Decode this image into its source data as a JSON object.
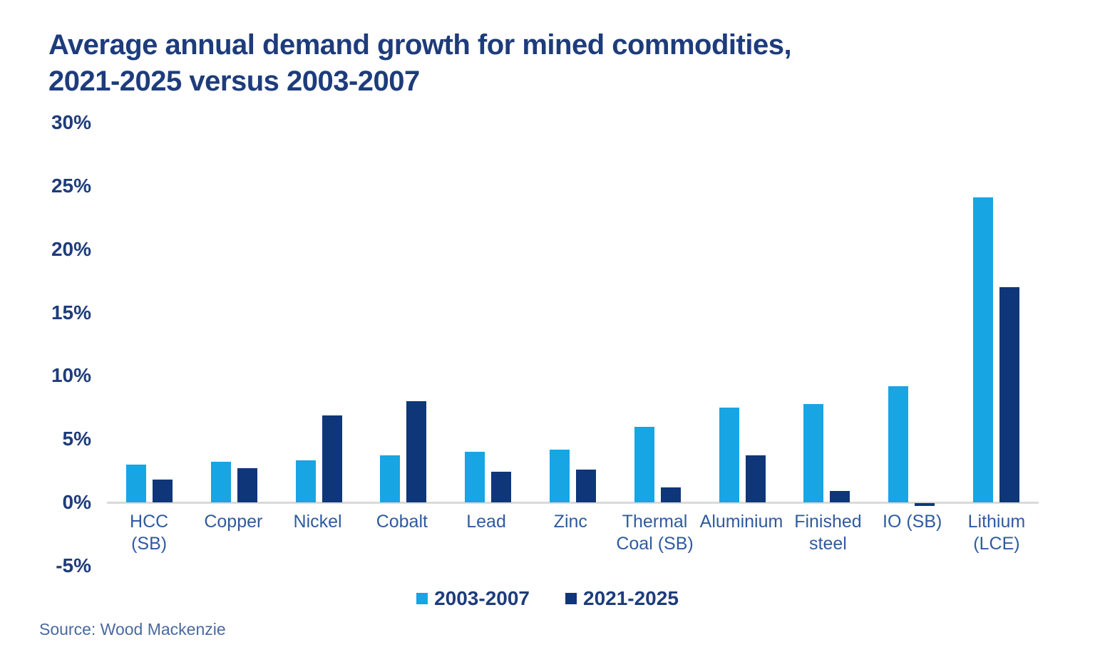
{
  "title": {
    "line1": "Average annual demand growth for mined commodities,",
    "line2": "2021-2025 versus 2003-2007"
  },
  "source": "Source: Wood Mackenzie",
  "colors": {
    "series_2003_2007": "#18a5e3",
    "series_2021_2025": "#0f3678",
    "navy_text": "#1e3c7b",
    "category_text": "#2f5b9f",
    "source_text": "#49699e",
    "baseline": "#d9d9d9",
    "background": "#ffffff"
  },
  "chart_data": {
    "type": "bar",
    "title": "Average annual demand growth for mined commodities, 2021-2025 versus 2003-2007",
    "categories": [
      "HCC (SB)",
      "Copper",
      "Nickel",
      "Cobalt",
      "Lead",
      "Zinc",
      "Thermal Coal (SB)",
      "Aluminium",
      "Finished steel",
      "IO (SB)",
      "Lithium (LCE)"
    ],
    "series": [
      {
        "name": "2003-2007",
        "color": "#18a5e3",
        "values": [
          3.0,
          3.2,
          3.3,
          3.7,
          4.0,
          4.2,
          6.0,
          7.5,
          7.8,
          9.2,
          24.1
        ]
      },
      {
        "name": "2021-2025",
        "color": "#0f3678",
        "values": [
          1.8,
          2.7,
          6.9,
          8.0,
          2.4,
          2.6,
          1.2,
          3.7,
          0.9,
          -0.2,
          17.0
        ]
      }
    ],
    "xlabel": "",
    "ylabel": "",
    "ylim": [
      -5,
      30
    ],
    "ytick_values": [
      30,
      25,
      20,
      15,
      10,
      5,
      0,
      -5
    ],
    "ytick_labels": [
      "30%",
      "25%",
      "20%",
      "15%",
      "10%",
      "5%",
      "0%",
      "-5%"
    ],
    "grid": false,
    "legend_position": "bottom"
  }
}
